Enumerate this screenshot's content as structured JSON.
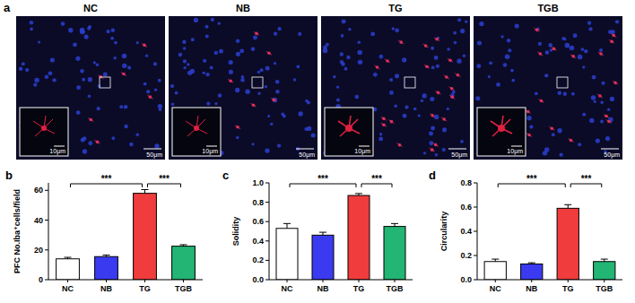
{
  "image_panel": {
    "letter": "a",
    "labels": [
      "NC",
      "NB",
      "TG",
      "TGB"
    ],
    "scale_large": "50μm",
    "scale_small": "10μm"
  },
  "chart_data": [
    {
      "type": "bar",
      "letter": "b",
      "y_label": "PFC No.Iba⁺cells/field",
      "categories": [
        "NC",
        "NB",
        "TG",
        "TGB"
      ],
      "values": [
        14,
        15.5,
        58,
        22.5
      ],
      "errors": [
        1,
        1,
        2.5,
        1
      ],
      "colors": [
        "#ffffff",
        "#3a3af0",
        "#f03c3c",
        "#22b573"
      ],
      "ylim": [
        0,
        65
      ],
      "yticks": [
        0,
        20,
        40,
        60
      ],
      "annotations": [
        {
          "from": 0,
          "to": 2,
          "label": "***"
        },
        {
          "from": 2,
          "to": 3,
          "label": "***"
        }
      ]
    },
    {
      "type": "bar",
      "letter": "c",
      "y_label": "Solidity",
      "categories": [
        "NC",
        "NB",
        "TG",
        "TGB"
      ],
      "values": [
        0.53,
        0.46,
        0.87,
        0.55
      ],
      "errors": [
        0.05,
        0.03,
        0.02,
        0.03
      ],
      "colors": [
        "#ffffff",
        "#3a3af0",
        "#f03c3c",
        "#22b573"
      ],
      "ylim": [
        0,
        1.0
      ],
      "yticks": [
        {
          "value": 0,
          "label": "0.0"
        },
        {
          "value": 0.2,
          "label": "0.2"
        },
        {
          "value": 0.4,
          "label": "0.4"
        },
        {
          "value": 0.6,
          "label": "0.6"
        },
        {
          "value": 0.8,
          "label": "0.8"
        },
        {
          "value": 1,
          "label": "1.0"
        }
      ],
      "annotations": [
        {
          "from": 0,
          "to": 2,
          "label": "***"
        },
        {
          "from": 2,
          "to": 3,
          "label": "***"
        }
      ]
    },
    {
      "type": "bar",
      "letter": "d",
      "y_label": "Circularity",
      "categories": [
        "NC",
        "NB",
        "TG",
        "TGB"
      ],
      "values": [
        0.15,
        0.13,
        0.59,
        0.15
      ],
      "errors": [
        0.02,
        0.01,
        0.03,
        0.02
      ],
      "colors": [
        "#ffffff",
        "#3a3af0",
        "#f03c3c",
        "#22b573"
      ],
      "ylim": [
        0,
        0.8
      ],
      "yticks": [
        {
          "value": 0,
          "label": "0.0"
        },
        {
          "value": 0.2,
          "label": "0.2"
        },
        {
          "value": 0.4,
          "label": "0.4"
        },
        {
          "value": 0.6,
          "label": "0.6"
        },
        {
          "value": 0.8,
          "label": "0.8"
        }
      ],
      "annotations": [
        {
          "from": 0,
          "to": 2,
          "label": "***"
        },
        {
          "from": 2,
          "to": 3,
          "label": "***"
        }
      ]
    }
  ]
}
